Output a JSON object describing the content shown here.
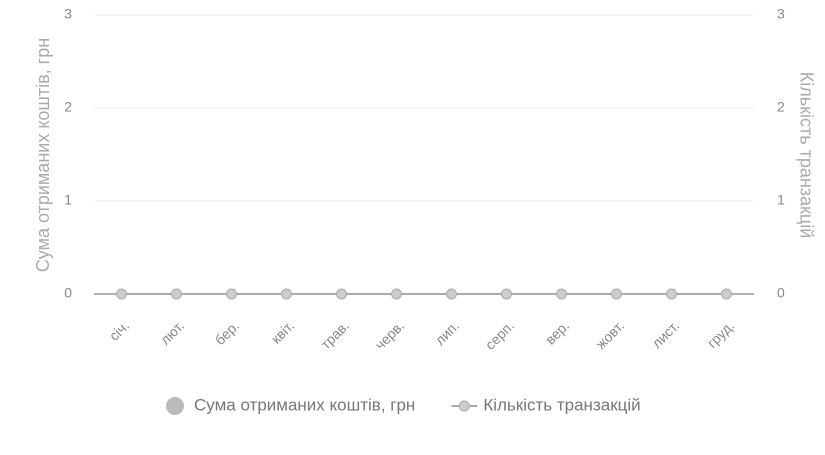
{
  "chart_data": {
    "type": "bar",
    "categories": [
      "січ.",
      "лют.",
      "бер.",
      "квіт.",
      "трав.",
      "черв.",
      "лип.",
      "серп.",
      "вер.",
      "жовт.",
      "лист.",
      "груд."
    ],
    "series": [
      {
        "name": "Сума отриманих коштів, грн",
        "type": "bar",
        "color": "#bbbbbb",
        "values": [
          0,
          0,
          0,
          0,
          0,
          0,
          0,
          0,
          0,
          0,
          0,
          0
        ]
      },
      {
        "name": "Кількість транзакцій",
        "type": "line",
        "axis": "y2",
        "color": "#aaaaaa",
        "values": [
          0,
          0,
          0,
          0,
          0,
          0,
          0,
          0,
          0,
          0,
          0,
          0
        ]
      }
    ],
    "y_label": "Сума отриманих коштів, грн",
    "y2_label": "Кількість транзакцій",
    "ylim": [
      0,
      3
    ],
    "yticks": [
      0,
      1,
      2,
      3
    ],
    "y2lim": [
      0,
      3
    ],
    "y2ticks": [
      0,
      1,
      2,
      3
    ],
    "grid": true,
    "legend": "bottom"
  }
}
